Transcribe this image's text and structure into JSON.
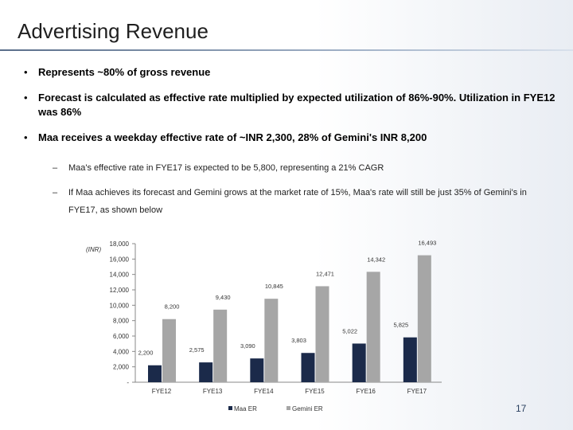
{
  "slide": {
    "title": "Advertising Revenue",
    "bullets": [
      "Represents ~80% of gross revenue",
      "Forecast is calculated as effective rate multiplied by expected utilization of 86%-90%. Utilization in FYE12 was 86%",
      "Maa receives a weekday effective rate of ~INR 2,300, 28% of Gemini's INR 8,200"
    ],
    "sub_bullets": [
      "Maa's effective rate in FYE17 is expected to be 5,800, representing a 21% CAGR",
      "If Maa achieves its forecast and Gemini grows at the market rate of 15%, Maa's rate will still be just 35% of Gemini's in FYE17, as shown below"
    ],
    "sub_dash": "–",
    "page_number": "17"
  },
  "chart_data": {
    "type": "bar",
    "unit_label": "(INR)",
    "categories": [
      "FYE12",
      "FYE13",
      "FYE14",
      "FYE15",
      "FYE16",
      "FYE17"
    ],
    "series": [
      {
        "name": "Maa ER",
        "values": [
          2200,
          2575,
          3090,
          3803,
          5022,
          5825
        ],
        "labels": [
          "2,200",
          "2,575",
          "3,090",
          "3,803",
          "5,022",
          "5,825"
        ],
        "color": "#1b2a4a"
      },
      {
        "name": "Gemini ER",
        "values": [
          8200,
          9430,
          10845,
          12471,
          14342,
          16493
        ],
        "labels": [
          "8,200",
          "9,430",
          "10,845",
          "12,471",
          "14,342",
          "16,493"
        ],
        "color": "#a6a6a6"
      }
    ],
    "y_ticks": [
      "18,000",
      "16,000",
      "14,000",
      "12,000",
      "10,000",
      "8,000",
      "6,000",
      "4,000",
      "2,000",
      "-"
    ],
    "ylim": [
      0,
      18000
    ],
    "legend_position": "bottom",
    "grid": false
  }
}
